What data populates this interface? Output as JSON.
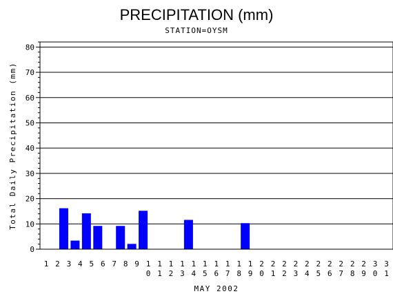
{
  "chart_data": {
    "type": "bar",
    "title": "PRECIPITATION (mm)",
    "subtitle": "STATION=OYSM",
    "xlabel": "MAY 2002",
    "ylabel": "Total Daily Precipitation (mm)",
    "categories": [
      "1",
      "2",
      "3",
      "4",
      "5",
      "6",
      "7",
      "8",
      "9",
      "10",
      "11",
      "12",
      "13",
      "14",
      "15",
      "16",
      "17",
      "18",
      "19",
      "20",
      "21",
      "22",
      "23",
      "24",
      "25",
      "26",
      "27",
      "28",
      "29",
      "30",
      "31"
    ],
    "values": [
      0,
      16.2,
      3.4,
      14.2,
      9.2,
      0,
      9.2,
      2.1,
      15.2,
      0,
      0,
      0,
      11.6,
      0,
      0,
      0,
      0,
      10.3,
      0,
      0,
      0,
      0,
      0,
      0,
      0,
      0,
      0,
      0,
      0,
      0,
      0
    ],
    "ylim": [
      0,
      82
    ],
    "yticks": [
      0,
      10,
      20,
      30,
      40,
      50,
      60,
      70,
      80
    ],
    "grid": true,
    "bar_color": "#0000ff"
  }
}
